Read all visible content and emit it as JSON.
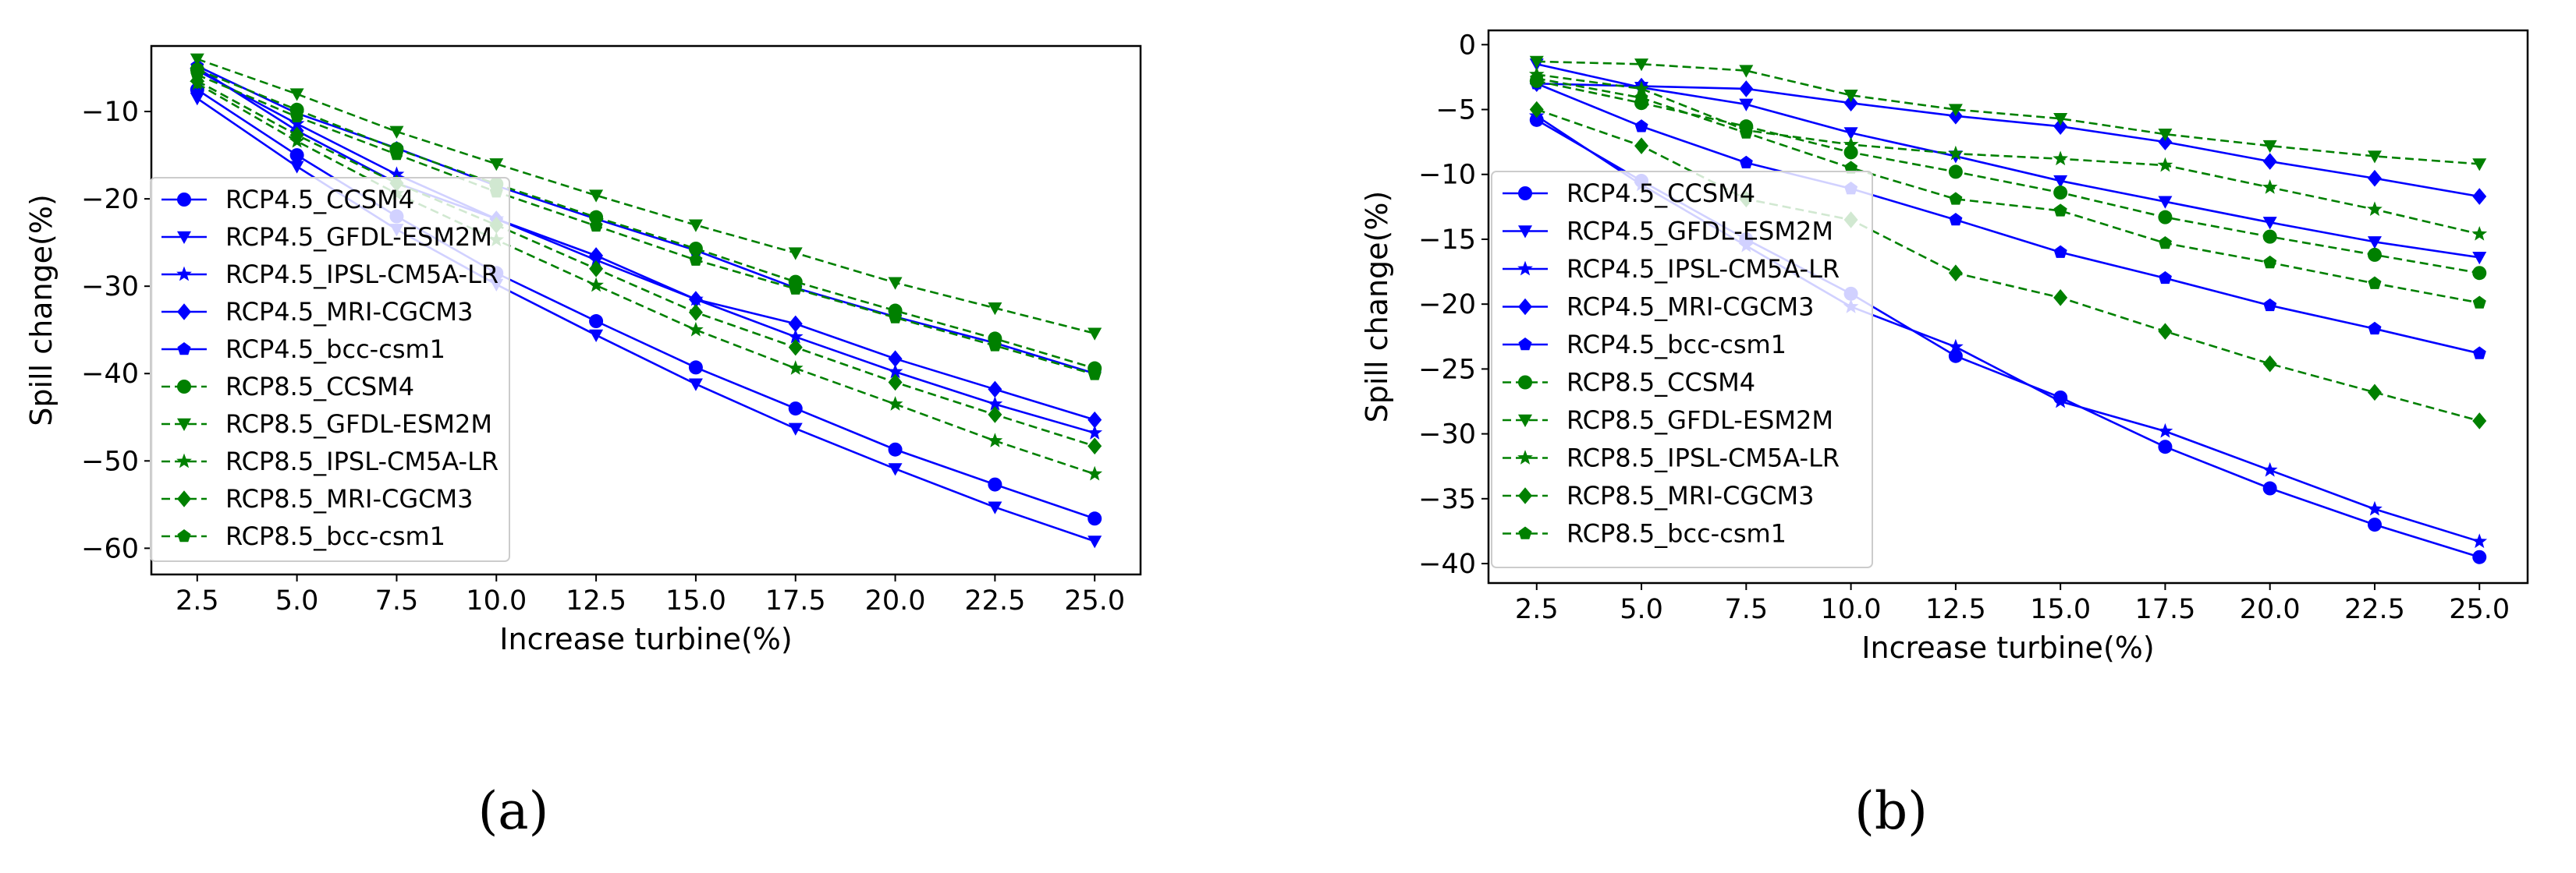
{
  "chart_data": [
    {
      "type": "line",
      "panel_label": "(a)",
      "xlabel": "Increase turbine(%)",
      "ylabel": "Spill change(%)",
      "x": [
        2.5,
        5.0,
        7.5,
        10.0,
        12.5,
        15.0,
        17.5,
        20.0,
        22.5,
        25.0
      ],
      "xticks": [
        "2.5",
        "5.0",
        "7.5",
        "10.0",
        "12.5",
        "15.0",
        "17.5",
        "20.0",
        "22.5",
        "25.0"
      ],
      "yticks": [
        -10,
        -20,
        -30,
        -40,
        -50,
        -60
      ],
      "xlim": [
        1.35,
        26.15
      ],
      "ylim": [
        -63,
        -2.5
      ],
      "legend_position": "center-left",
      "series": [
        {
          "name": "RCP4.5_CCSM4",
          "color": "#0000ff",
          "dashed": false,
          "marker": "circle",
          "values": [
            -7.5,
            -15,
            -22,
            -28.5,
            -34,
            -39.3,
            -44,
            -48.7,
            -52.7,
            -56.6
          ]
        },
        {
          "name": "RCP4.5_GFDL-ESM2M",
          "color": "#0000ff",
          "dashed": false,
          "marker": "triangle-down",
          "values": [
            -8.5,
            -16.3,
            -23.5,
            -29.8,
            -35.6,
            -41.2,
            -46.3,
            -50.9,
            -55.3,
            -59.2
          ]
        },
        {
          "name": "RCP4.5_IPSL-CM5A-LR",
          "color": "#0000ff",
          "dashed": false,
          "marker": "star",
          "values": [
            -5.3,
            -11.4,
            -17.2,
            -22.3,
            -27,
            -31.5,
            -35.8,
            -39.8,
            -43.5,
            -46.8
          ]
        },
        {
          "name": "RCP4.5_MRI-CGCM3",
          "color": "#0000ff",
          "dashed": false,
          "marker": "diamond",
          "values": [
            -5,
            -12.2,
            -18.2,
            -22.3,
            -26.5,
            -31.5,
            -34.3,
            -38.3,
            -41.8,
            -45.3
          ]
        },
        {
          "name": "RCP4.5_bcc-csm1",
          "color": "#0000ff",
          "dashed": false,
          "marker": "pentagon",
          "values": [
            -4.8,
            -10.2,
            -14.2,
            -18.5,
            -22.3,
            -25.9,
            -30.2,
            -33.5,
            -36.5,
            -40
          ]
        },
        {
          "name": "RCP8.5_CCSM4",
          "color": "#008000",
          "dashed": true,
          "marker": "circle",
          "values": [
            -5.2,
            -9.8,
            -14.3,
            -18.3,
            -22.1,
            -25.7,
            -29.5,
            -32.8,
            -36,
            -39.4
          ]
        },
        {
          "name": "RCP8.5_GFDL-ESM2M",
          "color": "#008000",
          "dashed": true,
          "marker": "triangle-down",
          "values": [
            -4,
            -8,
            -12.3,
            -16,
            -19.6,
            -23,
            -26.2,
            -29.6,
            -32.5,
            -35.4
          ]
        },
        {
          "name": "RCP8.5_IPSL-CM5A-LR",
          "color": "#008000",
          "dashed": true,
          "marker": "star",
          "values": [
            -6.8,
            -13.4,
            -19.4,
            -24.7,
            -29.9,
            -35,
            -39.4,
            -43.5,
            -47.7,
            -51.5
          ]
        },
        {
          "name": "RCP8.5_MRI-CGCM3",
          "color": "#008000",
          "dashed": true,
          "marker": "diamond",
          "values": [
            -6.5,
            -12.7,
            -18.2,
            -23,
            -28,
            -33,
            -37,
            -41,
            -44.7,
            -48.3
          ]
        },
        {
          "name": "RCP8.5_bcc-csm1",
          "color": "#008000",
          "dashed": true,
          "marker": "pentagon",
          "values": [
            -5.8,
            -10.6,
            -14.9,
            -19.2,
            -23.1,
            -27,
            -30.3,
            -33.6,
            -36.8,
            -40.1
          ]
        }
      ]
    },
    {
      "type": "line",
      "panel_label": "(b)",
      "xlabel": "Increase turbine(%)",
      "ylabel": "Spill change(%)",
      "x": [
        2.5,
        5.0,
        7.5,
        10.0,
        12.5,
        15.0,
        17.5,
        20.0,
        22.5,
        25.0
      ],
      "xticks": [
        "2.5",
        "5.0",
        "7.5",
        "10.0",
        "12.5",
        "15.0",
        "17.5",
        "20.0",
        "22.5",
        "25.0"
      ],
      "yticks": [
        0,
        -5,
        -10,
        -15,
        -20,
        -25,
        -30,
        -35,
        -40
      ],
      "xlim": [
        1.35,
        26.15
      ],
      "ylim": [
        -41.5,
        1.1
      ],
      "legend_position": "center-left",
      "series": [
        {
          "name": "RCP4.5_CCSM4",
          "color": "#0000ff",
          "dashed": false,
          "marker": "circle",
          "values": [
            -5.8,
            -10.5,
            -15,
            -19.2,
            -24,
            -27.2,
            -31,
            -34.2,
            -37,
            -39.5
          ]
        },
        {
          "name": "RCP4.5_GFDL-ESM2M",
          "color": "#0000ff",
          "dashed": false,
          "marker": "triangle-down",
          "values": [
            -1.5,
            -3.3,
            -4.6,
            -6.8,
            -8.6,
            -10.5,
            -12.1,
            -13.7,
            -15.2,
            -16.4
          ]
        },
        {
          "name": "RCP4.5_IPSL-CM5A-LR",
          "color": "#0000ff",
          "dashed": false,
          "marker": "star",
          "values": [
            -5.5,
            -10.8,
            -15.5,
            -20.2,
            -23.3,
            -27.5,
            -29.8,
            -32.8,
            -35.8,
            -38.3
          ]
        },
        {
          "name": "RCP4.5_MRI-CGCM3",
          "color": "#0000ff",
          "dashed": false,
          "marker": "diamond",
          "values": [
            -3,
            -3.2,
            -3.4,
            -4.5,
            -5.5,
            -6.3,
            -7.5,
            -9,
            -10.3,
            -11.7
          ]
        },
        {
          "name": "RCP4.5_bcc-csm1",
          "color": "#0000ff",
          "dashed": false,
          "marker": "pentagon",
          "values": [
            -3,
            -6.3,
            -9.1,
            -11.1,
            -13.5,
            -16,
            -18,
            -20.1,
            -21.9,
            -23.8
          ]
        },
        {
          "name": "RCP8.5_CCSM4",
          "color": "#008000",
          "dashed": true,
          "marker": "circle",
          "values": [
            -2.8,
            -4.5,
            -6.3,
            -8.3,
            -9.8,
            -11.4,
            -13.3,
            -14.8,
            -16.2,
            -17.6
          ]
        },
        {
          "name": "RCP8.5_GFDL-ESM2M",
          "color": "#008000",
          "dashed": true,
          "marker": "triangle-down",
          "values": [
            -1.3,
            -1.5,
            -2,
            -3.9,
            -5,
            -5.7,
            -6.9,
            -7.8,
            -8.6,
            -9.2
          ]
        },
        {
          "name": "RCP8.5_IPSL-CM5A-LR",
          "color": "#008000",
          "dashed": true,
          "marker": "star",
          "values": [
            -2.3,
            -3.4,
            -6.6,
            -7.7,
            -8.4,
            -8.8,
            -9.3,
            -11,
            -12.7,
            -14.6
          ]
        },
        {
          "name": "RCP8.5_MRI-CGCM3",
          "color": "#008000",
          "dashed": true,
          "marker": "diamond",
          "values": [
            -5,
            -7.8,
            -11.9,
            -13.5,
            -17.6,
            -19.5,
            -22.1,
            -24.6,
            -26.8,
            -29
          ]
        },
        {
          "name": "RCP8.5_bcc-csm1",
          "color": "#008000",
          "dashed": true,
          "marker": "pentagon",
          "values": [
            -2.6,
            -4.1,
            -6.8,
            -9.5,
            -11.9,
            -12.8,
            -15.3,
            -16.8,
            -18.4,
            -19.9
          ]
        }
      ]
    }
  ]
}
